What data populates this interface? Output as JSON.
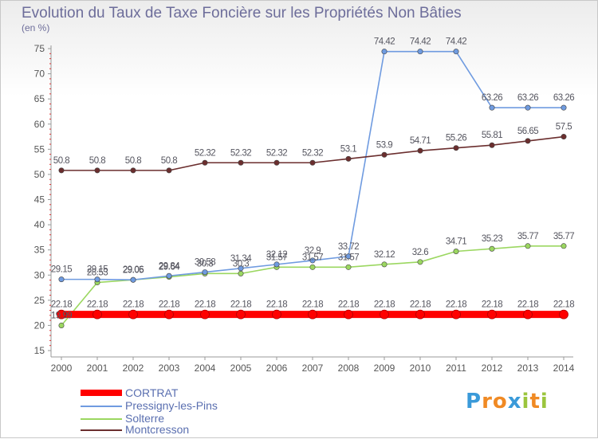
{
  "chart_data": {
    "type": "line",
    "title": "Evolution du Taux de Taxe Foncière sur les Propriétés Non Bâties",
    "ylabel": "(en %)",
    "xlabel": "",
    "ylim": [
      15,
      75
    ],
    "yticks": [
      15,
      20,
      25,
      30,
      35,
      40,
      45,
      50,
      55,
      60,
      65,
      70,
      75
    ],
    "x": [
      "2000",
      "2001",
      "2002",
      "2003",
      "2004",
      "2005",
      "2006",
      "2007",
      "2008",
      "2009",
      "2010",
      "2011",
      "2012",
      "2013",
      "2014"
    ],
    "grid": false,
    "legend_position": "bottom-left",
    "series": [
      {
        "name": "CORTRAT",
        "color": "#ff0000",
        "values": [
          22.18,
          22.18,
          22.18,
          22.18,
          22.18,
          22.18,
          22.18,
          22.18,
          22.18,
          22.18,
          22.18,
          22.18,
          22.18,
          22.18,
          22.18
        ],
        "labels": [
          "22.18",
          "22.18",
          "22.18",
          "22.18",
          "22.18",
          "22.18",
          "22.18",
          "22.18",
          "22.18",
          "22.18",
          "22.18",
          "22.18",
          "22.18",
          "22.18",
          "22.18"
        ]
      },
      {
        "name": "Pressigny-les-Pins",
        "color": "#6f9be0",
        "values": [
          29.15,
          29.15,
          29.06,
          29.84,
          30.58,
          31.34,
          32.12,
          32.9,
          33.72,
          74.42,
          74.42,
          74.42,
          63.26,
          63.26,
          63.26
        ],
        "labels": [
          "29.15",
          "29.15",
          "29.06",
          "29.84",
          "30.58",
          "31.34",
          "32.12",
          "32.9",
          "33.72",
          "74.42",
          "74.42",
          "74.42",
          "63.26",
          "63.26",
          "63.26"
        ]
      },
      {
        "name": "Solterre",
        "color": "#9bd760",
        "values": [
          19.99,
          28.53,
          29.05,
          29.64,
          30.3,
          30.3,
          31.57,
          31.57,
          31.57,
          32.12,
          32.6,
          34.71,
          35.23,
          35.77,
          35.77
        ],
        "labels": [
          "19.99",
          "28.53",
          "29.05",
          "29.64",
          "30.3",
          "30.3",
          "31.57",
          "31.57",
          "31.57",
          "32.12",
          "32.6",
          "34.71",
          "35.23",
          "35.77",
          "35.77"
        ]
      },
      {
        "name": "Montcresson",
        "color": "#6b2e2e",
        "values": [
          50.8,
          50.8,
          50.8,
          50.8,
          52.32,
          52.32,
          52.32,
          52.32,
          53.1,
          53.9,
          54.71,
          55.26,
          55.81,
          56.65,
          57.5
        ],
        "labels": [
          "50.8",
          "50.8",
          "50.8",
          "50.8",
          "52.32",
          "52.32",
          "52.32",
          "52.32",
          "53.1",
          "53.9",
          "54.71",
          "55.26",
          "55.81",
          "56.65",
          "57.5"
        ]
      }
    ]
  },
  "logo": {
    "letters": [
      "P",
      "r",
      "o",
      "x",
      "i",
      "t",
      "i"
    ],
    "colors": [
      "#3a9ad9",
      "#f08a24",
      "#f08a24",
      "#3a9ad9",
      "#9bc53d",
      "#f08a24",
      "#9bc53d"
    ]
  }
}
